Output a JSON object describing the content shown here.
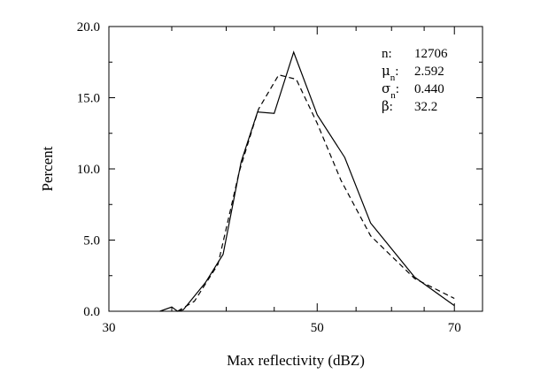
{
  "chart_data": {
    "type": "line",
    "xlabel": "Max reflectivity (dBZ)",
    "ylabel": "Percent",
    "xlim": [
      30,
      75
    ],
    "ylim": [
      0,
      20
    ],
    "x_scale": "log",
    "grid": false,
    "x_ticks": [
      30,
      50,
      70
    ],
    "x_tick_labels": [
      "30",
      "50",
      "70"
    ],
    "y_ticks": [
      0,
      5,
      10,
      15,
      20
    ],
    "y_tick_labels": [
      "0.0",
      "5.0",
      "10.0",
      "15.0",
      "20.0"
    ],
    "series": [
      {
        "style": "solid",
        "points": [
          [
            34,
            0
          ],
          [
            35,
            0.3
          ],
          [
            35.5,
            0
          ],
          [
            36,
            0.1
          ],
          [
            38,
            2
          ],
          [
            39.7,
            4
          ],
          [
            41.5,
            10.5
          ],
          [
            43.2,
            14
          ],
          [
            45,
            13.9
          ],
          [
            47.2,
            18.2
          ],
          [
            50,
            13.8
          ],
          [
            53.5,
            10.8
          ],
          [
            57,
            6.2
          ],
          [
            63.5,
            2.4
          ],
          [
            70,
            0.4
          ]
        ]
      },
      {
        "style": "dashed",
        "points": [
          [
            35.5,
            0
          ],
          [
            37,
            0.7
          ],
          [
            39.2,
            3.3
          ],
          [
            41.3,
            9.8
          ],
          [
            43.3,
            14.2
          ],
          [
            45.5,
            16.6
          ],
          [
            47.5,
            16.3
          ],
          [
            50,
            13.2
          ],
          [
            53,
            9.2
          ],
          [
            57,
            5.3
          ],
          [
            63.5,
            2.3
          ],
          [
            70,
            0.9
          ]
        ]
      }
    ],
    "stats": [
      {
        "label": "n",
        "sub": "",
        "symbol": false,
        "value": "12706"
      },
      {
        "label": "μ",
        "sub": "n",
        "symbol": true,
        "value": "2.592"
      },
      {
        "label": "σ",
        "sub": "n",
        "symbol": true,
        "value": "0.440"
      },
      {
        "label": "β",
        "sub": "",
        "symbol": true,
        "value": "32.2"
      }
    ]
  }
}
